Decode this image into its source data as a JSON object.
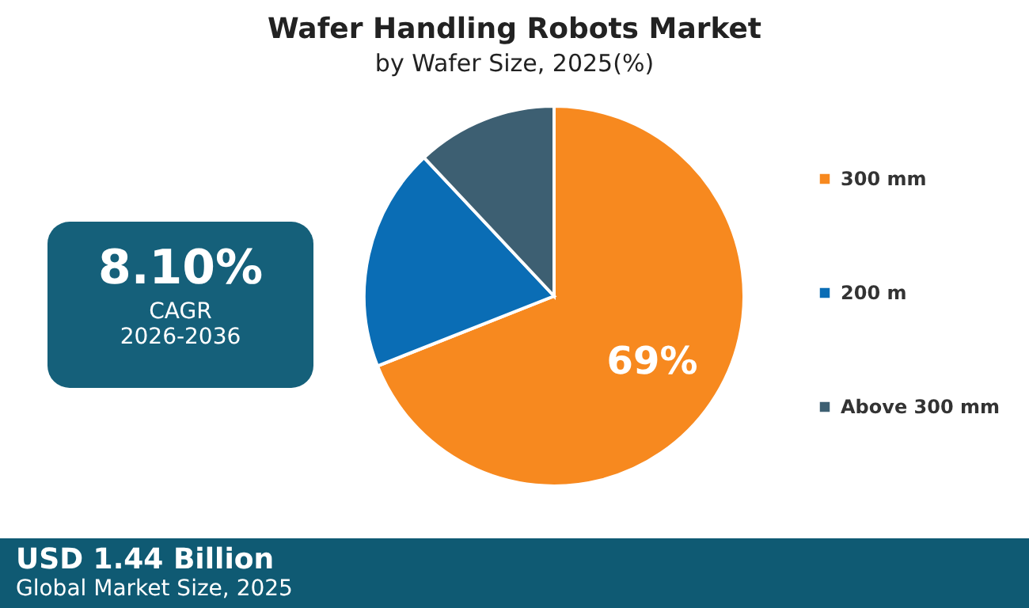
{
  "chart_data": {
    "type": "pie",
    "title": "Wafer Handling Robots Market",
    "subtitle": "by Wafer Size, 2025(%)",
    "categories": [
      "300 mm",
      "200 m",
      "Above 300 mm"
    ],
    "values": [
      69,
      19,
      12
    ],
    "colors": [
      "#f7891f",
      "#0a6db5",
      "#3d5f72"
    ],
    "value_labels": [
      "69%",
      null,
      null
    ],
    "legend": "right",
    "annotations": [
      "8.10%",
      "CAGR",
      "2026-2036",
      "USD 1.44 Billion",
      "Global Market Size, 2025"
    ]
  }
}
